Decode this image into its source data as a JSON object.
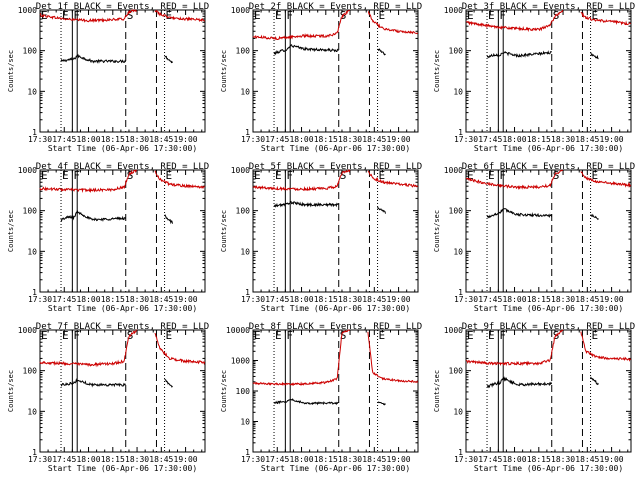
{
  "figure": {
    "xlabel": "Start Time (06-Apr-06 17:30:00)",
    "ylabel": "Counts/sec",
    "xticks": [
      "17:30",
      "17:45",
      "18:00",
      "18:15",
      "18:30",
      "18:45",
      "19:00"
    ],
    "xtick_minutes": [
      0,
      15,
      30,
      45,
      60,
      75,
      90
    ],
    "xlim_minutes": [
      0,
      102
    ],
    "marker_lines": [
      {
        "minute": 13,
        "style": "dotted",
        "label": "E"
      },
      {
        "minute": 20,
        "style": "solid",
        "label": "F"
      },
      {
        "minute": 23,
        "style": "solid",
        "label": ""
      },
      {
        "minute": 53,
        "style": "dashed",
        "label": "S"
      },
      {
        "minute": 72,
        "style": "dashed",
        "label": ""
      },
      {
        "minute": 77,
        "style": "dotted",
        "label": "E"
      }
    ],
    "left_edge_label": "E",
    "colors": {
      "events": "#000000",
      "lld": "#cc0000",
      "axis": "#000000"
    }
  },
  "chart_data": [
    {
      "type": "line",
      "title": "Det 1f BLACK = Events, RED = LLD",
      "ylim": [
        1,
        1000
      ],
      "yscale": "log",
      "yticks": [
        "1",
        "10",
        "100",
        "1000"
      ],
      "series": [
        {
          "name": "Events",
          "segments": [
            {
              "x": [
                13,
                18,
                21,
                23,
                32,
                53
              ],
              "y": [
                55,
                60,
                62,
                75,
                55,
                55
              ]
            },
            {
              "x": [
                77,
                82
              ],
              "y": [
                75,
                50
              ]
            }
          ]
        },
        {
          "name": "LLD",
          "segments": [
            {
              "x": [
                0,
                15,
                30,
                45,
                52,
                55,
                60
              ],
              "y": [
                750,
                600,
                550,
                580,
                600,
                900,
                1000
              ]
            },
            {
              "x": [
                71,
                74,
                80,
                90,
                102
              ],
              "y": [
                1000,
                800,
                650,
                600,
                560
              ]
            }
          ]
        }
      ]
    },
    {
      "type": "line",
      "title": "Det 2f BLACK = Events, RED = LLD",
      "ylim": [
        1,
        1000
      ],
      "yscale": "log",
      "yticks": [
        "1",
        "10",
        "100",
        "1000"
      ],
      "series": [
        {
          "name": "Events",
          "segments": [
            {
              "x": [
                13,
                18,
                21,
                23,
                32,
                53
              ],
              "y": [
                85,
                100,
                105,
                135,
                110,
                100
              ]
            },
            {
              "x": [
                77,
                82
              ],
              "y": [
                110,
                80
              ]
            }
          ]
        },
        {
          "name": "LLD",
          "segments": [
            {
              "x": [
                0,
                15,
                30,
                45,
                52,
                55,
                60
              ],
              "y": [
                220,
                200,
                230,
                230,
                260,
                700,
                1000
              ]
            },
            {
              "x": [
                71,
                74,
                80,
                90,
                102
              ],
              "y": [
                900,
                550,
                350,
                300,
                280
              ]
            }
          ]
        }
      ]
    },
    {
      "type": "line",
      "title": "Det 3f BLACK = Events, RED = LLD",
      "ylim": [
        1,
        1000
      ],
      "yscale": "log",
      "yticks": [
        "1",
        "10",
        "100",
        "1000"
      ],
      "series": [
        {
          "name": "Events",
          "segments": [
            {
              "x": [
                13,
                18,
                21,
                23,
                32,
                53
              ],
              "y": [
                70,
                80,
                78,
                90,
                75,
                90
              ]
            },
            {
              "x": [
                77,
                82
              ],
              "y": [
                85,
                65
              ]
            }
          ]
        },
        {
          "name": "LLD",
          "segments": [
            {
              "x": [
                0,
                15,
                30,
                45,
                52,
                55,
                60
              ],
              "y": [
                500,
                400,
                350,
                330,
                420,
                700,
                1000
              ]
            },
            {
              "x": [
                71,
                74,
                80,
                90,
                102
              ],
              "y": [
                850,
                650,
                560,
                520,
                450
              ]
            }
          ]
        }
      ]
    },
    {
      "type": "line",
      "title": "Det 4f BLACK = Events, RED = LLD",
      "ylim": [
        1,
        1000
      ],
      "yscale": "log",
      "yticks": [
        "1",
        "10",
        "100",
        "1000"
      ],
      "series": [
        {
          "name": "Events",
          "segments": [
            {
              "x": [
                13,
                18,
                21,
                23,
                32,
                53
              ],
              "y": [
                60,
                70,
                68,
                95,
                60,
                65
              ]
            },
            {
              "x": [
                77,
                82
              ],
              "y": [
                75,
                50
              ]
            }
          ]
        },
        {
          "name": "LLD",
          "segments": [
            {
              "x": [
                0,
                15,
                30,
                45,
                52,
                55,
                60
              ],
              "y": [
                350,
                330,
                320,
                330,
                380,
                800,
                1000
              ]
            },
            {
              "x": [
                71,
                74,
                80,
                90,
                102
              ],
              "y": [
                950,
                600,
                450,
                400,
                380
              ]
            }
          ]
        }
      ]
    },
    {
      "type": "line",
      "title": "Det 5f BLACK = Events, RED = LLD",
      "ylim": [
        1,
        1000
      ],
      "yscale": "log",
      "yticks": [
        "1",
        "10",
        "100",
        "1000"
      ],
      "series": [
        {
          "name": "Events",
          "segments": [
            {
              "x": [
                13,
                18,
                21,
                23,
                32,
                53
              ],
              "y": [
                130,
                140,
                145,
                160,
                140,
                140
              ]
            },
            {
              "x": [
                77,
                82
              ],
              "y": [
                120,
                90
              ]
            }
          ]
        },
        {
          "name": "LLD",
          "segments": [
            {
              "x": [
                0,
                15,
                30,
                45,
                52,
                55,
                60
              ],
              "y": [
                380,
                350,
                340,
                350,
                400,
                850,
                1000
              ]
            },
            {
              "x": [
                71,
                74,
                80,
                90,
                102
              ],
              "y": [
                950,
                650,
                500,
                450,
                400
              ]
            }
          ]
        }
      ]
    },
    {
      "type": "line",
      "title": "Det 6f BLACK = Events, RED = LLD",
      "ylim": [
        1,
        1000
      ],
      "yscale": "log",
      "yticks": [
        "1",
        "10",
        "100",
        "1000"
      ],
      "series": [
        {
          "name": "Events",
          "segments": [
            {
              "x": [
                13,
                18,
                21,
                23,
                32,
                53
              ],
              "y": [
                70,
                80,
                90,
                110,
                80,
                75
              ]
            },
            {
              "x": [
                77,
                82
              ],
              "y": [
                80,
                60
              ]
            }
          ]
        },
        {
          "name": "LLD",
          "segments": [
            {
              "x": [
                0,
                15,
                30,
                45,
                52,
                55,
                60
              ],
              "y": [
                600,
                450,
                380,
                380,
                420,
                800,
                1000
              ]
            },
            {
              "x": [
                71,
                74,
                80,
                90,
                102
              ],
              "y": [
                900,
                650,
                520,
                470,
                420
              ]
            }
          ]
        }
      ]
    },
    {
      "type": "line",
      "title": "Det 7f BLACK = Events, RED = LLD",
      "ylim": [
        1,
        1000
      ],
      "yscale": "log",
      "yticks": [
        "1",
        "10",
        "100",
        "1000"
      ],
      "series": [
        {
          "name": "Events",
          "segments": [
            {
              "x": [
                13,
                18,
                21,
                23,
                32,
                53
              ],
              "y": [
                45,
                48,
                50,
                58,
                45,
                45
              ]
            },
            {
              "x": [
                77,
                82
              ],
              "y": [
                60,
                40
              ]
            }
          ]
        },
        {
          "name": "LLD",
          "segments": [
            {
              "x": [
                0,
                15,
                30,
                45,
                52,
                55,
                60
              ],
              "y": [
                160,
                150,
                140,
                150,
                170,
                700,
                1000
              ]
            },
            {
              "x": [
                71,
                74,
                80,
                90,
                102
              ],
              "y": [
                900,
                350,
                200,
                170,
                160
              ]
            }
          ]
        }
      ]
    },
    {
      "type": "line",
      "title": "Det 8f BLACK = Events, RED = LLD",
      "ylim": [
        1,
        10000
      ],
      "yscale": "log",
      "yticks": [
        "1",
        "10",
        "100",
        "1000",
        "10000"
      ],
      "series": [
        {
          "name": "Events",
          "segments": [
            {
              "x": [
                13,
                18,
                21,
                23,
                32,
                53
              ],
              "y": [
                40,
                45,
                45,
                55,
                40,
                40
              ]
            },
            {
              "x": [
                77,
                82
              ],
              "y": [
                45,
                35
              ]
            }
          ]
        },
        {
          "name": "LLD",
          "segments": [
            {
              "x": [
                0,
                15,
                30,
                45,
                52,
                55,
                60
              ],
              "y": [
                180,
                170,
                170,
                190,
                250,
                8000,
                10000
              ]
            },
            {
              "x": [
                71,
                74,
                80,
                90,
                102
              ],
              "y": [
                9000,
                400,
                250,
                220,
                200
              ]
            }
          ]
        }
      ]
    },
    {
      "type": "line",
      "title": "Det 9f BLACK = Events, RED = LLD",
      "ylim": [
        1,
        1000
      ],
      "yscale": "log",
      "yticks": [
        "1",
        "10",
        "100",
        "1000"
      ],
      "series": [
        {
          "name": "Events",
          "segments": [
            {
              "x": [
                13,
                18,
                21,
                23,
                32,
                53
              ],
              "y": [
                40,
                48,
                50,
                65,
                45,
                48
              ]
            },
            {
              "x": [
                77,
                82
              ],
              "y": [
                70,
                45
              ]
            }
          ]
        },
        {
          "name": "LLD",
          "segments": [
            {
              "x": [
                0,
                15,
                30,
                45,
                52,
                55,
                60
              ],
              "y": [
                170,
                150,
                150,
                150,
                180,
                700,
                1000
              ]
            },
            {
              "x": [
                71,
                74,
                80,
                90,
                102
              ],
              "y": [
                900,
                300,
                220,
                200,
                190
              ]
            }
          ]
        }
      ]
    }
  ]
}
